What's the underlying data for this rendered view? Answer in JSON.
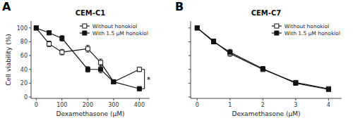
{
  "chart_data": [
    {
      "type": "line",
      "title": "CEM-C1",
      "x_label": "Dexamethasone (μM)",
      "y_label": "Cell viability (%)",
      "x": [
        0,
        50,
        100,
        200,
        250,
        300,
        400
      ],
      "series": [
        {
          "name": "Without honokiol",
          "color": "#111111",
          "marker": "open-square",
          "values": [
            100,
            77,
            65,
            70,
            50,
            22,
            40
          ],
          "errors": [
            2,
            4,
            4,
            5,
            5,
            3,
            3
          ]
        },
        {
          "name": "With 1.5 μM honokiol",
          "color": "#111111",
          "marker": "square",
          "values": [
            100,
            93,
            85,
            40,
            40,
            22,
            12
          ],
          "errors": [
            2,
            3,
            4,
            4,
            5,
            3,
            3
          ]
        }
      ],
      "xlim": [
        -20,
        440
      ],
      "xticks": [
        0,
        100,
        200,
        300,
        400
      ],
      "ylim": [
        -2,
        110
      ],
      "yticks": [
        0,
        20,
        40,
        60,
        80,
        100
      ],
      "grid": false,
      "legend": "upper right",
      "annotations": [
        {
          "text": "A"
        },
        {
          "text": "*",
          "x": [
            410,
            420
          ],
          "y": [
            12,
            40
          ]
        }
      ]
    },
    {
      "type": "line",
      "title": "CEM-C7",
      "x_label": "Dexamethasone (μM)",
      "x": [
        0,
        0.5,
        1,
        2,
        3,
        4
      ],
      "series": [
        {
          "name": "Without honokiol",
          "color": "#111111",
          "marker": "open-square",
          "values": [
            100,
            81,
            63,
            40,
            21,
            12
          ],
          "errors": [
            2,
            3,
            4,
            3,
            3,
            2
          ]
        },
        {
          "name": "With 1.5 μM honokiol",
          "color": "#111111",
          "marker": "square",
          "values": [
            100,
            80,
            65,
            41,
            20,
            11
          ],
          "errors": [
            2,
            3,
            4,
            3,
            3,
            2
          ]
        }
      ],
      "xlim": [
        -0.2,
        4.4
      ],
      "xticks": [
        0,
        1,
        2,
        3,
        4
      ],
      "ylim": [
        -2,
        110
      ],
      "yticks": [
        0,
        20,
        40,
        60,
        80,
        100
      ],
      "grid": false,
      "legend": "upper right",
      "tick_labels": "x",
      "annotations": [
        {
          "text": "B"
        }
      ]
    }
  ]
}
